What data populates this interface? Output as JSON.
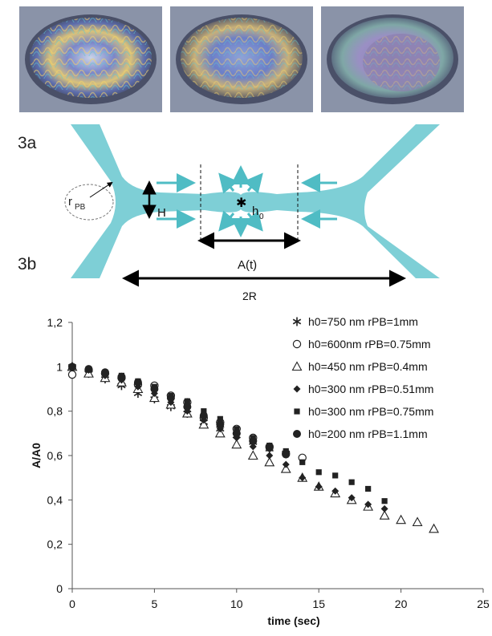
{
  "figure": {
    "panel_labels": [
      "3a",
      "3b"
    ],
    "diagram_labels": {
      "r_pb_main": "r",
      "r_pb_sub": "PB",
      "h_label": "H",
      "h0_main": "h",
      "h0_sub": "0",
      "area_label": "A(t)",
      "span_label": "2R"
    },
    "colors": {
      "film": "#7ecfd6",
      "arrow_teal": "#4fbcc4",
      "arrow_black": "#000000"
    }
  },
  "chart_data": {
    "type": "scatter",
    "xlabel": "time (sec)",
    "ylabel": "A/A0",
    "xlim": [
      0,
      25
    ],
    "ylim": [
      0,
      1.2
    ],
    "x_ticks": [
      "0",
      "5",
      "10",
      "15",
      "20",
      "25"
    ],
    "y_ticks": [
      "0",
      "0,2",
      "0,4",
      "0,6",
      "0,8",
      "1",
      "1,2"
    ],
    "legend_position": "top-right",
    "series": [
      {
        "name": "h0=750 nm rPB=1mm",
        "marker": "star",
        "x": [
          0,
          1,
          2,
          3,
          4,
          5,
          6,
          7,
          8,
          9,
          10,
          11,
          12,
          13
        ],
        "y": [
          1.0,
          0.97,
          0.945,
          0.915,
          0.88,
          0.855,
          0.82,
          0.79,
          0.75,
          0.72,
          0.69,
          0.66,
          0.63,
          0.61
        ]
      },
      {
        "name": "h0=600nm rPB=0.75mm",
        "marker": "circle-open",
        "x": [
          0,
          1,
          2,
          3,
          4,
          5,
          6,
          7,
          8,
          9,
          10,
          11,
          12,
          13,
          14
        ],
        "y": [
          0.965,
          0.985,
          0.97,
          0.95,
          0.92,
          0.915,
          0.87,
          0.84,
          0.77,
          0.75,
          0.72,
          0.68,
          0.64,
          0.61,
          0.59
        ]
      },
      {
        "name": "h0=450 nm rPB=0.4mm",
        "marker": "triangle-open",
        "x": [
          0,
          1,
          2,
          3,
          4,
          5,
          6,
          7,
          8,
          9,
          10,
          11,
          12,
          13,
          14,
          15,
          16,
          17,
          18,
          19,
          20,
          21,
          22
        ],
        "y": [
          1.0,
          0.97,
          0.95,
          0.93,
          0.9,
          0.86,
          0.83,
          0.79,
          0.74,
          0.7,
          0.65,
          0.6,
          0.57,
          0.54,
          0.5,
          0.46,
          0.43,
          0.4,
          0.37,
          0.33,
          0.31,
          0.3,
          0.27
        ]
      },
      {
        "name": "h0=300 nm rPB=0.51mm",
        "marker": "diamond",
        "x": [
          0,
          1,
          2,
          3,
          4,
          5,
          6,
          7,
          8,
          9,
          10,
          11,
          12,
          13,
          14,
          15,
          16,
          17,
          18,
          19
        ],
        "y": [
          1.0,
          0.985,
          0.96,
          0.94,
          0.91,
          0.88,
          0.84,
          0.8,
          0.76,
          0.72,
          0.68,
          0.64,
          0.6,
          0.56,
          0.5,
          0.46,
          0.44,
          0.41,
          0.38,
          0.36
        ]
      },
      {
        "name": "h0=300 nm rPB=0.75mm",
        "marker": "square",
        "x": [
          0,
          1,
          2,
          3,
          4,
          5,
          6,
          7,
          8,
          9,
          10,
          11,
          12,
          13,
          14,
          15,
          16,
          17,
          18,
          19
        ],
        "y": [
          1.0,
          0.99,
          0.975,
          0.96,
          0.935,
          0.91,
          0.87,
          0.845,
          0.8,
          0.765,
          0.72,
          0.68,
          0.645,
          0.62,
          0.57,
          0.525,
          0.51,
          0.48,
          0.45,
          0.395
        ]
      },
      {
        "name": "h0=200 nm rPB=1.1mm",
        "marker": "circle-filled",
        "x": [
          0,
          1,
          2,
          3,
          4,
          5,
          6,
          7,
          8,
          9,
          10,
          11,
          12,
          13
        ],
        "y": [
          1.0,
          0.99,
          0.975,
          0.955,
          0.93,
          0.9,
          0.86,
          0.82,
          0.78,
          0.74,
          0.7,
          0.665,
          0.635,
          0.605
        ]
      }
    ]
  }
}
